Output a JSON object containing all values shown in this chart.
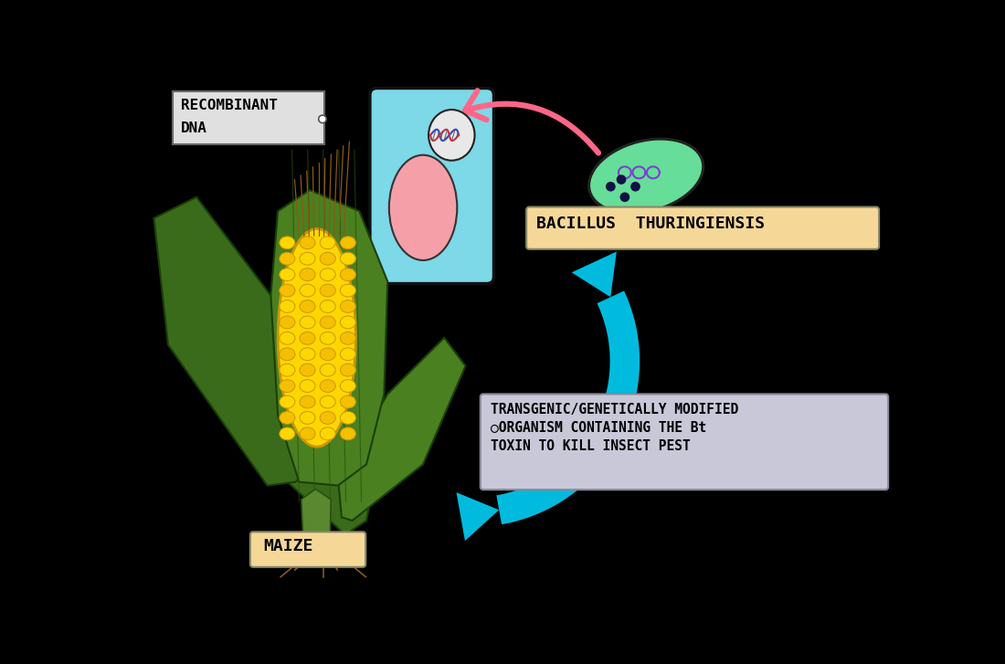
{
  "bg_color": "#000000",
  "label_recombinant_1": "RECOMBINANT",
  "label_recombinant_2": "DNA",
  "label_bacillus": "BACILLUS  THURINGIENSIS",
  "label_maize": "MAIZE",
  "label_transgenic_line1": "TRANSGENIC/GENETICALLY MODIFIED",
  "label_transgenic_line2": "○ORGANISM CONTAINING THE Bt",
  "label_transgenic_line3": "TOXIN TO KILL INSECT PEST",
  "cell_outer_color": "#7DD8E8",
  "cell_inner_color": "#F5A0A8",
  "bacterium_color": "#66DD99",
  "bacterium_border": "#222222",
  "arrow_blue": "#00BBDD",
  "arrow_pink": "#FF6688",
  "box_recombinant_bg": "#E0E0E0",
  "box_bacillus_bg": "#F5D898",
  "box_transgenic_bg": "#C8C8D8",
  "box_maize_bg": "#F5D898",
  "corn_yellow1": "#FFD700",
  "corn_yellow2": "#F5C000",
  "corn_dark": "#C8960A",
  "corn_orange": "#E8A800",
  "leaf_dark": "#3A6B1A",
  "leaf_mid": "#4A8020",
  "leaf_light": "#5A9A28",
  "stem_color": "#5A8830",
  "root_brown": "#8B5A14",
  "husk_back": "#3A6218",
  "dna_blue": "#3344CC",
  "dna_red": "#CC3344",
  "dot_dark": "#111144",
  "squiggle_purple": "#7744CC"
}
